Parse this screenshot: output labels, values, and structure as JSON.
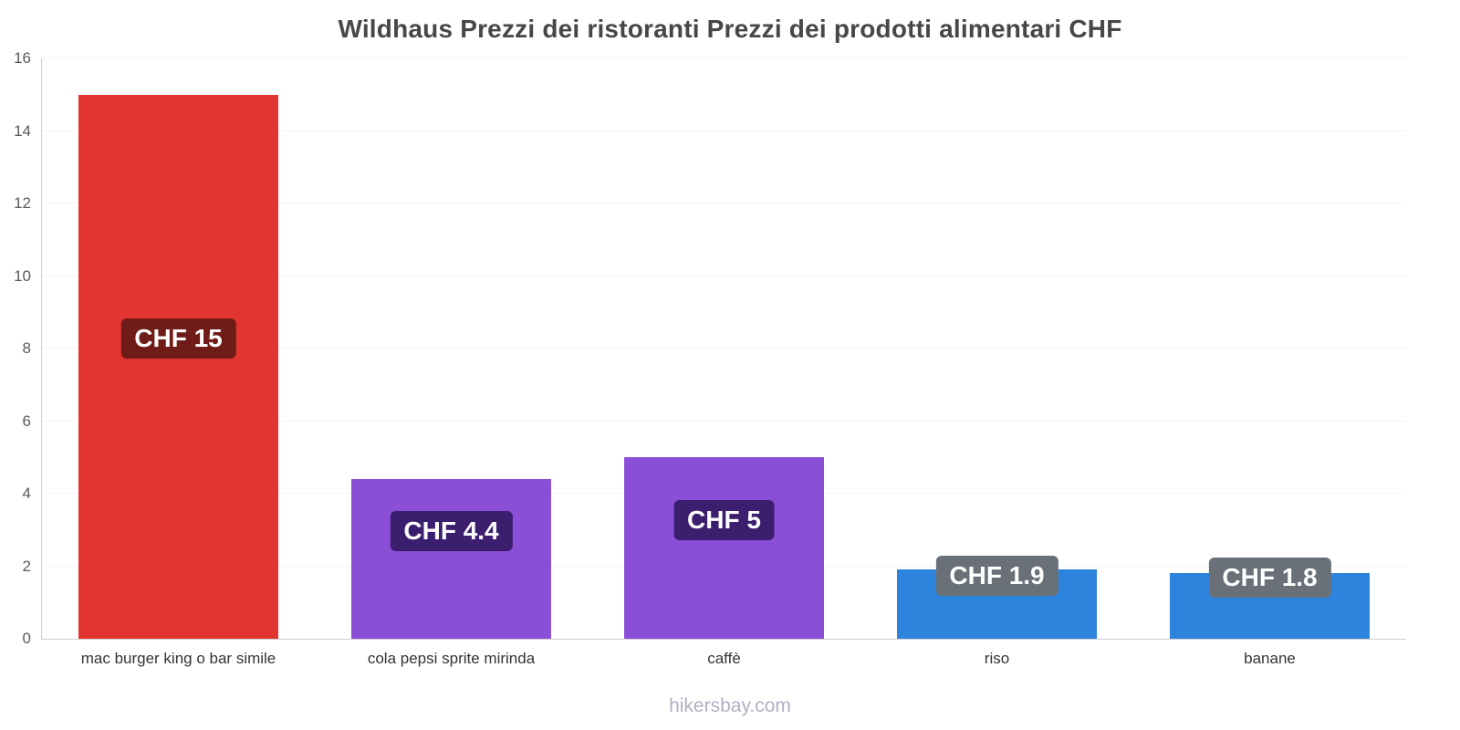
{
  "title": "Wildhaus Prezzi dei ristoranti Prezzi dei prodotti alimentari CHF",
  "footer": {
    "text": "hikersbay.com"
  },
  "chart_data": {
    "type": "bar",
    "title": "Wildhaus Prezzi dei ristoranti Prezzi dei prodotti alimentari CHF",
    "categories": [
      "mac burger king o bar simile",
      "cola pepsi sprite mirinda",
      "caffè",
      "riso",
      "banane"
    ],
    "values": [
      15,
      4.4,
      5,
      1.9,
      1.8
    ],
    "value_labels": [
      "CHF 15",
      "CHF 4.4",
      "CHF 5",
      "CHF 1.9",
      "CHF 1.8"
    ],
    "bar_colors": [
      "#e23430",
      "#8a4fd6",
      "#8a4fd6",
      "#2e84dc",
      "#2e84dc"
    ],
    "badge_colors": [
      "#6f1c18",
      "#3b1e6e",
      "#3b1e6e",
      "#6a7077",
      "#6a7077"
    ],
    "xlabel": "",
    "ylabel": "",
    "ylim": [
      0,
      16
    ],
    "yticks": [
      0,
      2,
      4,
      6,
      8,
      10,
      12,
      14,
      16
    ],
    "grid": true,
    "legend": "none",
    "currency": "CHF"
  }
}
